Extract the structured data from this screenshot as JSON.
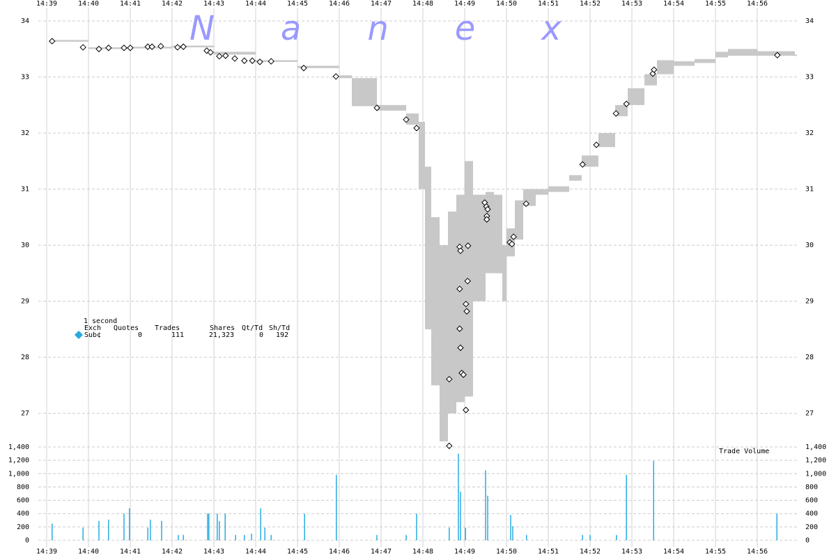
{
  "chart_data": [
    {
      "type": "scatter",
      "watermark": "Nanex",
      "grid": true,
      "xlim": [
        38.8,
        57
      ],
      "ylim": [
        26.4,
        34.2
      ],
      "xticks": [
        {
          "value": 39,
          "label": "14:39"
        },
        {
          "value": 40,
          "label": "14:40"
        },
        {
          "value": 41,
          "label": "14:41"
        },
        {
          "value": 42,
          "label": "14:42"
        },
        {
          "value": 43,
          "label": "14:43"
        },
        {
          "value": 44,
          "label": "14:44"
        },
        {
          "value": 45,
          "label": "14:45"
        },
        {
          "value": 46,
          "label": "14:46"
        },
        {
          "value": 47,
          "label": "14:47"
        },
        {
          "value": 48,
          "label": "14:48"
        },
        {
          "value": 49,
          "label": "14:49"
        },
        {
          "value": 50,
          "label": "14:50"
        },
        {
          "value": 51,
          "label": "14:51"
        },
        {
          "value": 52,
          "label": "14:52"
        },
        {
          "value": 53,
          "label": "14:53"
        },
        {
          "value": 54,
          "label": "14:54"
        },
        {
          "value": 55,
          "label": "14:55"
        },
        {
          "value": 56,
          "label": "14:56"
        }
      ],
      "yticks": [
        27,
        28,
        29,
        30,
        31,
        32,
        33,
        34
      ],
      "band": {
        "color": "#c8c8c8",
        "x": [
          39.1,
          40.0,
          41.0,
          42.0,
          43.0,
          44.0,
          45.0,
          46.0,
          46.3,
          46.9,
          47.6,
          47.9,
          48.05,
          48.2,
          48.4,
          48.6,
          48.8,
          49.0,
          49.2,
          49.5,
          49.7,
          49.9,
          50.0,
          50.2,
          50.4,
          50.7,
          51.0,
          51.5,
          51.8,
          52.2,
          52.6,
          52.9,
          53.3,
          53.6,
          54.0,
          54.5,
          55.0,
          55.3,
          56.0,
          56.9
        ],
        "low": [
          33.63,
          33.5,
          33.51,
          33.53,
          33.4,
          33.27,
          33.16,
          32.98,
          32.48,
          32.4,
          32.15,
          31.0,
          28.5,
          27.5,
          26.5,
          27.0,
          27.2,
          27.3,
          29.0,
          29.5,
          29.5,
          29.0,
          29.8,
          30.1,
          30.7,
          30.9,
          30.95,
          31.15,
          31.4,
          31.75,
          32.3,
          32.5,
          32.85,
          33.05,
          33.2,
          33.25,
          33.35,
          33.38,
          33.38,
          33.38
        ],
        "high": [
          33.66,
          33.53,
          33.54,
          33.56,
          33.45,
          33.3,
          33.2,
          33.03,
          32.98,
          32.5,
          32.35,
          32.2,
          31.4,
          30.5,
          30.0,
          30.6,
          30.9,
          31.5,
          30.9,
          30.95,
          30.9,
          30.0,
          30.3,
          30.8,
          31.0,
          31.0,
          31.05,
          31.25,
          31.6,
          32.0,
          32.5,
          32.8,
          33.05,
          33.3,
          33.28,
          33.32,
          33.45,
          33.5,
          33.46,
          33.4
        ]
      },
      "color": "#000000",
      "x": [
        39.13,
        39.87,
        40.25,
        40.48,
        40.85,
        41.0,
        41.42,
        41.52,
        41.73,
        42.13,
        42.27,
        42.83,
        42.92,
        43.13,
        43.28,
        43.5,
        43.73,
        43.92,
        44.1,
        44.37,
        45.15,
        45.92,
        46.9,
        47.6,
        47.85,
        48.63,
        48.63,
        48.88,
        48.9,
        48.88,
        48.88,
        48.9,
        48.93,
        48.97,
        49.03,
        49.03,
        49.05,
        49.07,
        49.08,
        49.48,
        49.52,
        49.55,
        49.53,
        49.53,
        50.08,
        50.13,
        50.17,
        50.47,
        51.82,
        52.15,
        52.62,
        52.87,
        53.5,
        53.53,
        56.48
      ],
      "values": [
        33.64,
        33.53,
        33.5,
        33.52,
        33.52,
        33.52,
        33.54,
        33.54,
        33.55,
        33.53,
        33.54,
        33.47,
        33.44,
        33.37,
        33.38,
        33.33,
        33.29,
        33.29,
        33.27,
        33.28,
        33.16,
        33.01,
        32.45,
        32.24,
        32.09,
        27.61,
        26.42,
        29.97,
        29.9,
        29.22,
        28.51,
        28.17,
        27.72,
        27.69,
        27.06,
        28.95,
        28.82,
        29.36,
        29.99,
        30.76,
        30.69,
        30.64,
        30.52,
        30.46,
        30.05,
        30.02,
        30.15,
        30.74,
        31.44,
        31.79,
        32.35,
        32.52,
        33.06,
        33.13,
        33.39
      ],
      "legend": {
        "title": "1 second",
        "marker_color": "#29a9e0",
        "headers": [
          "Exch",
          "Quotes",
          "Trades",
          "Shares",
          "Qt/Td",
          "Sh/Td"
        ],
        "row": [
          "Sub¢",
          "0",
          "111",
          "21,323",
          "0",
          "192"
        ]
      }
    },
    {
      "type": "bar",
      "label": "Trade Volume",
      "color": "#29abe2",
      "grid": true,
      "xlim": [
        38.8,
        57
      ],
      "ylim": [
        0,
        1400
      ],
      "xticks": [
        {
          "value": 39,
          "label": "14:39"
        },
        {
          "value": 40,
          "label": "14:40"
        },
        {
          "value": 41,
          "label": "14:41"
        },
        {
          "value": 42,
          "label": "14:42"
        },
        {
          "value": 43,
          "label": "14:43"
        },
        {
          "value": 44,
          "label": "14:44"
        },
        {
          "value": 45,
          "label": "14:45"
        },
        {
          "value": 46,
          "label": "14:46"
        },
        {
          "value": 47,
          "label": "14:47"
        },
        {
          "value": 48,
          "label": "14:48"
        },
        {
          "value": 49,
          "label": "14:49"
        },
        {
          "value": 50,
          "label": "14:50"
        },
        {
          "value": 51,
          "label": "14:51"
        },
        {
          "value": 52,
          "label": "14:52"
        },
        {
          "value": 53,
          "label": "14:53"
        },
        {
          "value": 54,
          "label": "14:54"
        },
        {
          "value": 55,
          "label": "14:55"
        },
        {
          "value": 56,
          "label": "14:56"
        }
      ],
      "yticks": [
        0,
        200,
        400,
        600,
        800,
        {
          "value": 1000,
          "label": "1,000"
        },
        {
          "value": 1200,
          "label": "1,200"
        },
        {
          "value": 1400,
          "label": "1,400"
        }
      ],
      "x": [
        39.13,
        39.87,
        40.25,
        40.48,
        40.85,
        40.98,
        41.42,
        41.48,
        41.75,
        42.15,
        42.27,
        42.85,
        42.88,
        43.08,
        43.13,
        43.27,
        43.52,
        43.73,
        43.9,
        44.12,
        44.22,
        44.37,
        45.17,
        45.93,
        46.9,
        47.6,
        47.85,
        48.63,
        48.85,
        48.9,
        49.02,
        49.5,
        49.55,
        50.1,
        50.15,
        50.48,
        51.82,
        52.0,
        52.63,
        52.87,
        53.52,
        56.47
      ],
      "values": [
        250,
        190,
        290,
        310,
        400,
        480,
        190,
        310,
        290,
        80,
        80,
        400,
        400,
        400,
        290,
        400,
        80,
        80,
        100,
        480,
        190,
        80,
        400,
        980,
        80,
        80,
        400,
        190,
        1300,
        730,
        190,
        1050,
        670,
        380,
        210,
        80,
        80,
        80,
        80,
        980,
        1190,
        400
      ]
    }
  ]
}
